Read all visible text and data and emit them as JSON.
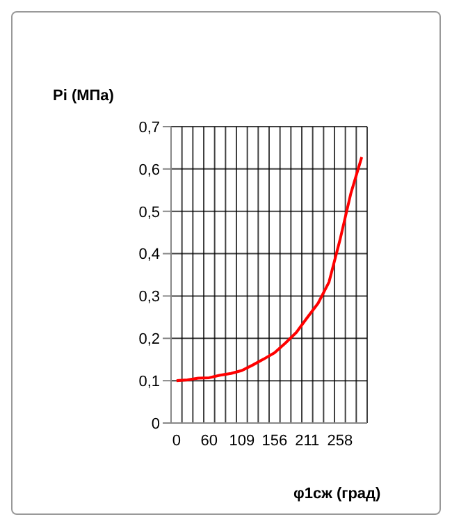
{
  "chart_data": {
    "type": "line",
    "ylabel": "Pi  (МПа)",
    "xlabel": "φ1сж  (град)",
    "categories": [
      "0",
      null,
      null,
      "60",
      null,
      null,
      "109",
      null,
      null,
      "156",
      null,
      null,
      "211",
      null,
      null,
      "258",
      null,
      null
    ],
    "series": [
      {
        "color": "#ff0000",
        "values": [
          0.1,
          0.102,
          0.106,
          0.107,
          0.113,
          0.117,
          0.124,
          0.137,
          0.151,
          0.166,
          0.189,
          0.214,
          0.249,
          0.283,
          0.333,
          0.432,
          0.542,
          0.628
        ]
      }
    ],
    "ylim": [
      0,
      0.7
    ],
    "yticks": [
      0,
      {
        "value": 0.1,
        "label": "0,1"
      },
      {
        "value": 0.2,
        "label": "0,2"
      },
      {
        "value": 0.3,
        "label": "0,3"
      },
      {
        "value": 0.4,
        "label": "0,4"
      },
      {
        "value": 0.5,
        "label": "0,5"
      },
      {
        "value": 0.6,
        "label": "0,6"
      },
      {
        "value": 0.7,
        "label": "0,7"
      }
    ],
    "grid": true,
    "marker": "none",
    "line_style": "solid"
  }
}
